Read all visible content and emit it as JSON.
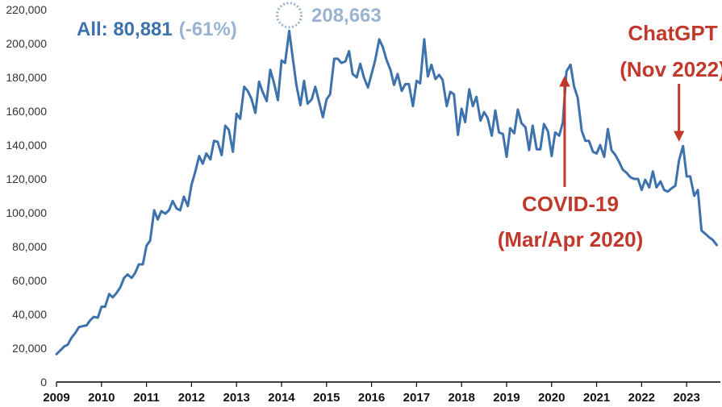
{
  "chart_data": {
    "type": "line",
    "title": "",
    "xlabel": "",
    "ylabel": "",
    "ylim": [
      0,
      220000
    ],
    "xlim": [
      2009.0,
      2023.75
    ],
    "grid": false,
    "yticks": [
      0,
      20000,
      40000,
      60000,
      80000,
      100000,
      120000,
      140000,
      160000,
      180000,
      200000,
      220000
    ],
    "ytick_labels": [
      "0",
      "20,000",
      "40,000",
      "60,000",
      "80,000",
      "100,000",
      "120,000",
      "140,000",
      "160,000",
      "180,000",
      "200,000",
      "220,000"
    ],
    "xticks": [
      2009,
      2010,
      2011,
      2012,
      2013,
      2014,
      2015,
      2016,
      2017,
      2018,
      2019,
      2020,
      2021,
      2022,
      2023
    ],
    "xtick_labels": [
      "2009",
      "2010",
      "2011",
      "2012",
      "2013",
      "2014",
      "2015",
      "2016",
      "2017",
      "2018",
      "2019",
      "2020",
      "2021",
      "2022",
      "2023"
    ],
    "series": [
      {
        "color": "#3d72ad",
        "x": [
          2009.0,
          2009.08,
          2009.17,
          2009.25,
          2009.33,
          2009.42,
          2009.5,
          2009.58,
          2009.67,
          2009.75,
          2009.83,
          2009.92,
          2010.0,
          2010.08,
          2010.17,
          2010.25,
          2010.33,
          2010.42,
          2010.5,
          2010.58,
          2010.67,
          2010.75,
          2010.83,
          2010.92,
          2011.0,
          2011.08,
          2011.17,
          2011.25,
          2011.33,
          2011.42,
          2011.5,
          2011.58,
          2011.67,
          2011.75,
          2011.83,
          2011.92,
          2012.0,
          2012.08,
          2012.17,
          2012.25,
          2012.33,
          2012.42,
          2012.5,
          2012.58,
          2012.67,
          2012.75,
          2012.83,
          2012.92,
          2013.0,
          2013.08,
          2013.17,
          2013.25,
          2013.33,
          2013.42,
          2013.5,
          2013.58,
          2013.67,
          2013.75,
          2013.83,
          2013.92,
          2014.0,
          2014.08,
          2014.17,
          2014.25,
          2014.33,
          2014.42,
          2014.5,
          2014.58,
          2014.67,
          2014.75,
          2014.83,
          2014.92,
          2015.0,
          2015.08,
          2015.17,
          2015.25,
          2015.33,
          2015.42,
          2015.5,
          2015.58,
          2015.67,
          2015.75,
          2015.83,
          2015.92,
          2016.0,
          2016.08,
          2016.17,
          2016.25,
          2016.33,
          2016.42,
          2016.5,
          2016.58,
          2016.67,
          2016.75,
          2016.83,
          2016.92,
          2017.0,
          2017.08,
          2017.17,
          2017.25,
          2017.33,
          2017.42,
          2017.5,
          2017.58,
          2017.67,
          2017.75,
          2017.83,
          2017.92,
          2018.0,
          2018.08,
          2018.17,
          2018.25,
          2018.33,
          2018.42,
          2018.5,
          2018.58,
          2018.67,
          2018.75,
          2018.83,
          2018.92,
          2019.0,
          2019.08,
          2019.17,
          2019.25,
          2019.33,
          2019.42,
          2019.5,
          2019.58,
          2019.67,
          2019.75,
          2019.83,
          2019.92,
          2020.0,
          2020.08,
          2020.17,
          2020.25,
          2020.33,
          2020.42,
          2020.5,
          2020.58,
          2020.67,
          2020.75,
          2020.83,
          2020.92,
          2021.0,
          2021.08,
          2021.17,
          2021.25,
          2021.33,
          2021.42,
          2021.5,
          2021.58,
          2021.67,
          2021.75,
          2021.83,
          2021.92,
          2022.0,
          2022.08,
          2022.17,
          2022.25,
          2022.33,
          2022.42,
          2022.5,
          2022.58,
          2022.67,
          2022.75,
          2022.83,
          2022.92,
          2023.0,
          2023.08,
          2023.17,
          2023.25,
          2023.33,
          2023.42,
          2023.5,
          2023.58,
          2023.67
        ],
        "y": [
          16500,
          18500,
          21000,
          22000,
          26000,
          29000,
          32500,
          33000,
          33500,
          36500,
          38500,
          38000,
          44500,
          44500,
          52000,
          50000,
          52500,
          56000,
          61500,
          63500,
          61500,
          64500,
          69500,
          69500,
          80500,
          83500,
          101500,
          96000,
          101000,
          99500,
          101500,
          107000,
          102500,
          101500,
          109500,
          104000,
          116500,
          124000,
          133500,
          129000,
          135000,
          131500,
          142500,
          142000,
          134000,
          151500,
          149000,
          136000,
          158500,
          155500,
          174500,
          172000,
          167500,
          159000,
          177500,
          171500,
          166000,
          184500,
          177000,
          166500,
          190000,
          188500,
          207500,
          191500,
          175500,
          163500,
          178000,
          164500,
          167000,
          174500,
          166000,
          156500,
          167000,
          170000,
          191000,
          191000,
          188500,
          189500,
          195500,
          182000,
          180000,
          188000,
          180000,
          174000,
          182000,
          190000,
          202500,
          198000,
          190500,
          184500,
          175500,
          182000,
          172000,
          176000,
          176000,
          163000,
          178000,
          176500,
          202500,
          180500,
          187500,
          179000,
          181500,
          178500,
          163000,
          171500,
          170000,
          146000,
          161500,
          153500,
          173000,
          163000,
          168500,
          154500,
          159500,
          156000,
          145500,
          160500,
          147500,
          146500,
          133000,
          150000,
          147000,
          161000,
          153000,
          150500,
          137000,
          151500,
          137500,
          137500,
          152500,
          148000,
          133500,
          147500,
          145500,
          153500,
          183500,
          187500,
          174500,
          168000,
          148500,
          142500,
          142500,
          136000,
          135000,
          140000,
          133000,
          149500,
          137000,
          134000,
          130000,
          125500,
          123500,
          121000,
          120000,
          120000,
          113500,
          119500,
          115000,
          124500,
          115000,
          118500,
          113500,
          112500,
          114500,
          116000,
          131000,
          139500,
          121500,
          121500,
          110000,
          113500,
          89500,
          87500,
          85500,
          84000,
          80900
        ]
      }
    ],
    "annotations": {
      "summary_prefix": "All: 80,881",
      "summary_change": "(-61%)",
      "peak_label": "208,663",
      "peak_x": 2014.17,
      "peak_y": 208663,
      "covid_line1": "COVID-19",
      "covid_line2": "(Mar/Apr 2020)",
      "covid_x": 2020.29,
      "covid_y": 183500,
      "chatgpt_line1": "ChatGPT",
      "chatgpt_line2": "(Nov 2022)",
      "chatgpt_x": 2022.83,
      "chatgpt_y": 139500
    },
    "colors": {
      "line": "#3d72ad",
      "summary": "#3d72ad",
      "summary_change": "#9ab3d0",
      "peak": "#9ab3d0",
      "event": "#c0392b",
      "axis": "#000000"
    }
  }
}
